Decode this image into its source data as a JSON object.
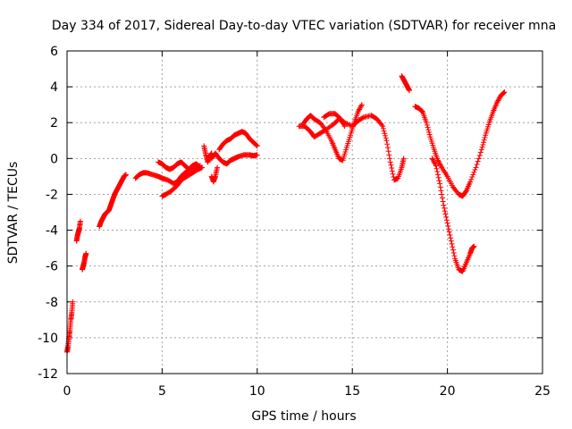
{
  "chart_data": {
    "type": "scatter",
    "marker": "plus",
    "title": "Day 334 of 2017, Sidereal Day-to-day VTEC variation (SDTVAR) for receiver mna",
    "xlabel": "GPS time / hours",
    "ylabel": "SDTVAR / TECUs",
    "xlim": [
      0,
      25
    ],
    "ylim": [
      -12,
      6
    ],
    "xticks": [
      0,
      5,
      10,
      15,
      20,
      25
    ],
    "yticks": [
      -12,
      -10,
      -8,
      -6,
      -4,
      -2,
      0,
      2,
      4,
      6
    ],
    "grid": true,
    "legend": "none",
    "colors": {
      "series": "#ff0000",
      "grid": "#a0a0a0",
      "axis": "#000000"
    },
    "series": [
      {
        "segments": [
          [
            [
              0.0,
              -10.8
            ],
            [
              0.05,
              -10.5
            ],
            [
              0.1,
              -10.0
            ],
            [
              0.15,
              -9.6
            ],
            [
              0.2,
              -9.0
            ],
            [
              0.25,
              -8.6
            ],
            [
              0.3,
              -8.0
            ]
          ],
          [
            [
              0.5,
              -4.6
            ],
            [
              0.55,
              -4.3
            ],
            [
              0.6,
              -4.1
            ],
            [
              0.65,
              -3.9
            ],
            [
              0.7,
              -3.5
            ]
          ],
          [
            [
              0.8,
              -6.2
            ],
            [
              0.85,
              -6.0
            ],
            [
              0.9,
              -5.8
            ],
            [
              0.95,
              -5.5
            ],
            [
              1.0,
              -5.3
            ]
          ],
          [
            [
              1.7,
              -3.8
            ],
            [
              1.8,
              -3.5
            ],
            [
              1.9,
              -3.3
            ],
            [
              2.0,
              -3.1
            ],
            [
              2.1,
              -3.0
            ],
            [
              2.2,
              -2.9
            ],
            [
              2.3,
              -2.6
            ],
            [
              2.4,
              -2.3
            ],
            [
              2.5,
              -2.0
            ],
            [
              2.6,
              -1.8
            ],
            [
              2.7,
              -1.6
            ],
            [
              2.8,
              -1.4
            ],
            [
              2.9,
              -1.2
            ],
            [
              3.0,
              -1.0
            ],
            [
              3.1,
              -0.9
            ]
          ],
          [
            [
              3.6,
              -1.1
            ],
            [
              3.8,
              -0.9
            ],
            [
              4.0,
              -0.8
            ],
            [
              4.2,
              -0.8
            ],
            [
              4.5,
              -0.9
            ],
            [
              4.8,
              -1.0
            ],
            [
              5.0,
              -1.1
            ],
            [
              5.3,
              -1.2
            ],
            [
              5.6,
              -1.4
            ],
            [
              5.8,
              -1.3
            ],
            [
              6.0,
              -1.0
            ],
            [
              6.2,
              -0.8
            ],
            [
              6.5,
              -0.6
            ],
            [
              6.8,
              -0.5
            ],
            [
              7.0,
              -0.4
            ]
          ],
          [
            [
              4.8,
              -0.2
            ],
            [
              5.0,
              -0.3
            ],
            [
              5.2,
              -0.5
            ],
            [
              5.4,
              -0.6
            ],
            [
              5.6,
              -0.5
            ],
            [
              5.8,
              -0.3
            ],
            [
              6.0,
              -0.2
            ],
            [
              6.2,
              -0.4
            ],
            [
              6.4,
              -0.6
            ],
            [
              6.6,
              -0.4
            ],
            [
              6.8,
              -0.3
            ],
            [
              7.0,
              -0.5
            ]
          ],
          [
            [
              5.0,
              -2.1
            ],
            [
              5.2,
              -2.0
            ],
            [
              5.5,
              -1.8
            ],
            [
              5.8,
              -1.5
            ],
            [
              6.0,
              -1.2
            ],
            [
              6.3,
              -1.0
            ],
            [
              6.6,
              -0.8
            ],
            [
              6.9,
              -0.6
            ],
            [
              7.1,
              -0.5
            ]
          ],
          [
            [
              7.2,
              0.7
            ],
            [
              7.3,
              0.2
            ],
            [
              7.4,
              -0.2
            ],
            [
              7.5,
              0.1
            ],
            [
              7.6,
              0.3
            ]
          ],
          [
            [
              7.6,
              -1.0
            ],
            [
              7.7,
              -1.3
            ],
            [
              7.8,
              -1.0
            ],
            [
              7.9,
              -0.5
            ]
          ],
          [
            [
              7.6,
              0.0
            ],
            [
              7.8,
              0.3
            ],
            [
              8.0,
              0.0
            ],
            [
              8.2,
              -0.2
            ],
            [
              8.4,
              -0.3
            ],
            [
              8.6,
              -0.1
            ],
            [
              8.8,
              0.0
            ],
            [
              9.0,
              0.1
            ],
            [
              9.3,
              0.2
            ],
            [
              9.6,
              0.2
            ],
            [
              9.8,
              0.15
            ],
            [
              10.0,
              0.2
            ]
          ],
          [
            [
              8.0,
              0.5
            ],
            [
              8.2,
              0.8
            ],
            [
              8.4,
              1.0
            ],
            [
              8.6,
              1.1
            ],
            [
              8.8,
              1.3
            ],
            [
              9.0,
              1.4
            ],
            [
              9.2,
              1.5
            ],
            [
              9.4,
              1.4
            ],
            [
              9.6,
              1.1
            ],
            [
              9.8,
              0.9
            ],
            [
              10.0,
              0.7
            ]
          ],
          [
            [
              12.2,
              1.8
            ],
            [
              12.5,
              1.8
            ],
            [
              12.8,
              1.5
            ],
            [
              13.0,
              1.2
            ],
            [
              13.3,
              1.4
            ],
            [
              13.6,
              1.6
            ],
            [
              14.0,
              1.9
            ],
            [
              14.3,
              2.2
            ],
            [
              14.6,
              2.0
            ],
            [
              15.0,
              1.8
            ],
            [
              15.3,
              2.1
            ],
            [
              15.6,
              2.3
            ],
            [
              16.0,
              2.4
            ],
            [
              16.3,
              2.2
            ],
            [
              16.6,
              1.8
            ],
            [
              16.8,
              1.0
            ],
            [
              17.0,
              -0.2
            ],
            [
              17.2,
              -1.2
            ],
            [
              17.4,
              -1.1
            ],
            [
              17.6,
              -0.5
            ],
            [
              17.7,
              0.0
            ]
          ],
          [
            [
              12.4,
              1.9
            ],
            [
              12.6,
              2.2
            ],
            [
              12.8,
              2.4
            ],
            [
              13.0,
              2.2
            ],
            [
              13.3,
              2.0
            ],
            [
              13.6,
              1.6
            ],
            [
              13.9,
              1.0
            ],
            [
              14.1,
              0.5
            ],
            [
              14.3,
              0.0
            ],
            [
              14.5,
              -0.1
            ],
            [
              14.7,
              0.6
            ],
            [
              14.9,
              1.3
            ],
            [
              15.1,
              2.0
            ],
            [
              15.3,
              2.6
            ],
            [
              15.5,
              3.0
            ]
          ],
          [
            [
              13.5,
              2.3
            ],
            [
              13.8,
              2.5
            ],
            [
              14.1,
              2.5
            ],
            [
              14.4,
              2.2
            ],
            [
              14.6,
              1.8
            ]
          ],
          [
            [
              17.6,
              4.6
            ],
            [
              17.7,
              4.4
            ],
            [
              17.8,
              4.2
            ],
            [
              17.9,
              4.0
            ],
            [
              18.0,
              3.8
            ]
          ],
          [
            [
              18.3,
              2.9
            ],
            [
              18.5,
              2.8
            ],
            [
              18.7,
              2.6
            ],
            [
              18.9,
              2.0
            ],
            [
              19.1,
              1.2
            ],
            [
              19.3,
              0.5
            ],
            [
              19.5,
              -0.1
            ],
            [
              19.7,
              -0.5
            ],
            [
              20.0,
              -1.0
            ],
            [
              20.3,
              -1.6
            ],
            [
              20.6,
              -2.0
            ],
            [
              20.8,
              -2.1
            ],
            [
              21.0,
              -1.8
            ],
            [
              21.2,
              -1.3
            ],
            [
              21.5,
              -0.5
            ],
            [
              21.8,
              0.5
            ],
            [
              22.0,
              1.3
            ],
            [
              22.2,
              2.0
            ],
            [
              22.4,
              2.6
            ],
            [
              22.6,
              3.1
            ],
            [
              22.8,
              3.5
            ],
            [
              23.0,
              3.7
            ]
          ],
          [
            [
              19.2,
              0.0
            ],
            [
              19.4,
              -0.4
            ],
            [
              19.6,
              -1.4
            ],
            [
              19.8,
              -2.6
            ],
            [
              20.0,
              -3.6
            ],
            [
              20.2,
              -4.6
            ],
            [
              20.4,
              -5.6
            ],
            [
              20.6,
              -6.2
            ],
            [
              20.8,
              -6.3
            ],
            [
              21.0,
              -5.8
            ],
            [
              21.2,
              -5.3
            ],
            [
              21.3,
              -5.0
            ],
            [
              21.4,
              -4.9
            ]
          ]
        ]
      }
    ]
  }
}
